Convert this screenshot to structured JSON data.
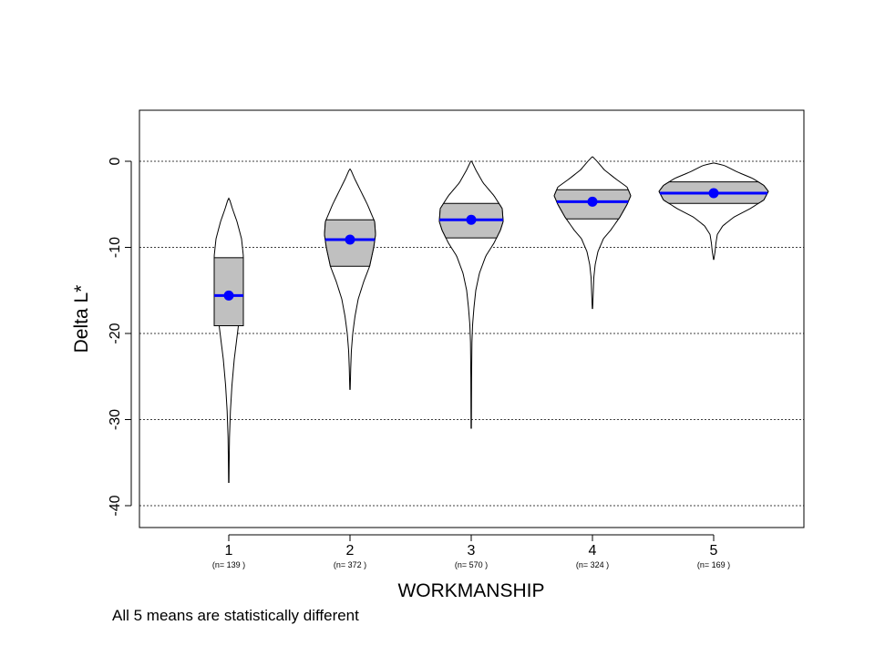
{
  "chart_data": {
    "type": "violin",
    "xlabel": "WORKMANSHIP",
    "ylabel": "Delta L*",
    "ylim": [
      -42.5,
      6
    ],
    "yticks": [
      0,
      -10,
      -20,
      -30,
      -40
    ],
    "grid": "horizontal dashed",
    "categories": [
      "1",
      "2",
      "3",
      "4",
      "5"
    ],
    "n_labels": [
      "(n= 139 )",
      "(n= 372 )",
      "(n= 570 )",
      "(n= 324 )",
      "(n= 169 )"
    ],
    "series": [
      {
        "category": "1",
        "n": 139,
        "mean": -15.6,
        "q1": -19.1,
        "q3": -11.2,
        "min": -37.3,
        "max": -4.3,
        "profile": [
          [
            -37.3,
            0.2
          ],
          [
            -35,
            0.4
          ],
          [
            -32,
            0.8
          ],
          [
            -29,
            1.8
          ],
          [
            -26,
            3.5
          ],
          [
            -23,
            6
          ],
          [
            -20,
            9.5
          ],
          [
            -17,
            13
          ],
          [
            -14,
            15.5
          ],
          [
            -11,
            16
          ],
          [
            -9,
            14
          ],
          [
            -7,
            9
          ],
          [
            -5.5,
            4
          ],
          [
            -4.3,
            0.5
          ]
        ]
      },
      {
        "category": "2",
        "n": 372,
        "mean": -9.1,
        "q1": -12.2,
        "q3": -6.8,
        "min": -26.5,
        "max": -0.9,
        "profile": [
          [
            -26.5,
            0.2
          ],
          [
            -24,
            0.8
          ],
          [
            -22,
            1.5
          ],
          [
            -20,
            3
          ],
          [
            -18,
            5.5
          ],
          [
            -16,
            9
          ],
          [
            -14,
            15
          ],
          [
            -12.2,
            21.5
          ],
          [
            -10,
            26
          ],
          [
            -8.5,
            28
          ],
          [
            -7,
            27
          ],
          [
            -5,
            19
          ],
          [
            -3.5,
            12
          ],
          [
            -2,
            5
          ],
          [
            -0.9,
            0.5
          ]
        ]
      },
      {
        "category": "3",
        "n": 570,
        "mean": -6.8,
        "q1": -8.9,
        "q3": -4.9,
        "min": -31.0,
        "max": 0.0,
        "profile": [
          [
            -31,
            0.2
          ],
          [
            -25,
            0.4
          ],
          [
            -21,
            0.8
          ],
          [
            -19,
            1.5
          ],
          [
            -17,
            3
          ],
          [
            -15,
            5
          ],
          [
            -13,
            9
          ],
          [
            -11,
            16
          ],
          [
            -9.5,
            25
          ],
          [
            -8,
            32
          ],
          [
            -7,
            35
          ],
          [
            -5.5,
            34
          ],
          [
            -4,
            25
          ],
          [
            -2.5,
            13
          ],
          [
            -1,
            5
          ],
          [
            0,
            0.5
          ]
        ]
      },
      {
        "category": "4",
        "n": 324,
        "mean": -4.7,
        "q1": -6.7,
        "q3": -3.3,
        "min": -17.1,
        "max": 0.5,
        "profile": [
          [
            -17.1,
            0.2
          ],
          [
            -15.5,
            0.8
          ],
          [
            -13.5,
            1.5
          ],
          [
            -12,
            3
          ],
          [
            -10.5,
            6
          ],
          [
            -9,
            12
          ],
          [
            -8,
            20
          ],
          [
            -6.5,
            30
          ],
          [
            -5,
            38
          ],
          [
            -4,
            42
          ],
          [
            -3,
            38
          ],
          [
            -2,
            25
          ],
          [
            -1,
            13
          ],
          [
            0,
            5
          ],
          [
            0.5,
            0.5
          ]
        ]
      },
      {
        "category": "5",
        "n": 169,
        "mean": -3.7,
        "q1": -4.9,
        "q3": -2.4,
        "min": -11.4,
        "max": -0.2,
        "profile": [
          [
            -11.4,
            0.2
          ],
          [
            -10.5,
            1.5
          ],
          [
            -9.5,
            2.5
          ],
          [
            -8.5,
            4
          ],
          [
            -7.5,
            10
          ],
          [
            -6.5,
            22
          ],
          [
            -5.5,
            40
          ],
          [
            -4.5,
            55
          ],
          [
            -3.5,
            60
          ],
          [
            -2.8,
            55
          ],
          [
            -2,
            43
          ],
          [
            -1.2,
            25
          ],
          [
            -0.5,
            12
          ],
          [
            -0.2,
            0.5
          ]
        ]
      }
    ],
    "colors": {
      "iqr_fill": "#c0c0c0",
      "mean_line": "#0000ff",
      "violin_fill": "#ffffff",
      "outline": "#000000"
    }
  },
  "note": "All 5 means are statistically different"
}
